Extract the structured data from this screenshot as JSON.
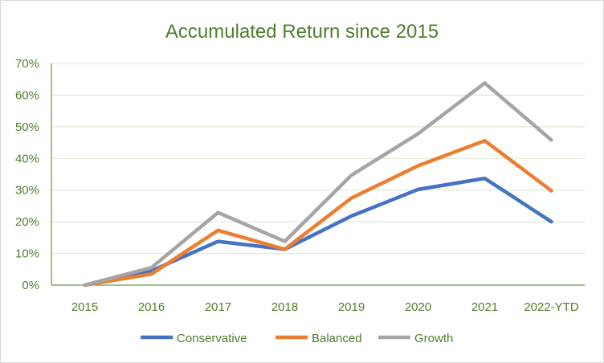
{
  "chart_data": {
    "type": "line",
    "title": "Accumulated Return since 2015",
    "categories": [
      "2015",
      "2016",
      "2017",
      "2018",
      "2019",
      "2020",
      "2021",
      "2022-YTD"
    ],
    "y_ticks": [
      "0%",
      "10%",
      "20%",
      "30%",
      "40%",
      "50%",
      "60%",
      "70%"
    ],
    "ylim": [
      0,
      70
    ],
    "y_unit": "%",
    "grid": true,
    "legend_position": "bottom",
    "series": [
      {
        "name": "Conservative",
        "color": "#4472c4",
        "values": [
          0,
          4.5,
          13.8,
          11.3,
          21.8,
          30.2,
          33.7,
          20.0
        ]
      },
      {
        "name": "Balanced",
        "color": "#ed7d31",
        "values": [
          0,
          3.5,
          17.3,
          11.3,
          27.5,
          37.7,
          45.6,
          29.8
        ]
      },
      {
        "name": "Growth",
        "color": "#a5a5a5",
        "values": [
          0,
          5.5,
          22.9,
          13.8,
          34.7,
          47.8,
          63.8,
          45.8
        ]
      }
    ]
  }
}
